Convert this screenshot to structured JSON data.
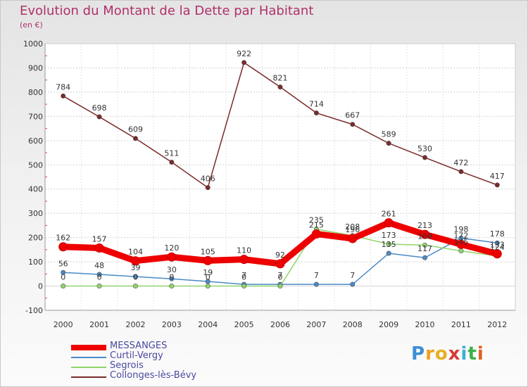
{
  "title": "Evolution du Montant de la Dette par Habitant",
  "subtitle": "(en €)",
  "logo": {
    "letters": [
      "P",
      "r",
      "o",
      "x",
      "i",
      "t",
      "i"
    ],
    "colors": [
      "#3b8fd6",
      "#f0a020",
      "#e8b020",
      "#d63b3b",
      "#3bb0d6",
      "#3bb04a",
      "#e06020"
    ]
  },
  "chart_data": {
    "type": "line",
    "categories": [
      "2000",
      "2001",
      "2002",
      "2003",
      "2004",
      "2005",
      "2006",
      "2007",
      "2008",
      "2009",
      "2010",
      "2011",
      "2012"
    ],
    "ylim": [
      -100,
      1000
    ],
    "yticks": [
      -100,
      0,
      100,
      200,
      300,
      400,
      500,
      600,
      700,
      800,
      900,
      1000
    ],
    "ytick_labels": [
      "-100",
      "0",
      "100",
      "200",
      "300",
      "400",
      "500",
      "600",
      "700",
      "800",
      "900",
      "1000"
    ],
    "xlabel": "",
    "ylabel": "",
    "grid": true,
    "legend_position": "bottom-left",
    "series": [
      {
        "name": "Collonges-lès-Bévy",
        "color": "#7a2a2a",
        "values": [
          784,
          698,
          609,
          511,
          406,
          922,
          821,
          714,
          667,
          589,
          530,
          472,
          417
        ],
        "labels": [
          "784",
          "698",
          "609",
          "511",
          "406",
          "922",
          "821",
          "714",
          "667",
          "589",
          "530",
          "472",
          "417"
        ]
      },
      {
        "name": "Curtil-Vergy",
        "color": "#4a8ac8",
        "values": [
          56,
          48,
          39,
          30,
          19,
          7,
          7,
          7,
          7,
          135,
          117,
          198,
          178
        ],
        "labels": [
          "56",
          "48",
          "39",
          "30",
          "19",
          "7",
          "7",
          "7",
          "7",
          "135",
          "117",
          "198",
          "178"
        ]
      },
      {
        "name": "Segrois",
        "color": "#8fd46a",
        "values": [
          0,
          0,
          0,
          0,
          0,
          0,
          0,
          235,
          208,
          173,
          169,
          145,
          124
        ],
        "labels": [
          "0",
          "0",
          "0",
          "0",
          "0",
          "0",
          "0",
          "235",
          "208",
          "173",
          "169",
          "145",
          "124"
        ]
      },
      {
        "name": "MESSANGES",
        "color": "#ee0000",
        "values": [
          162,
          157,
          104,
          120,
          105,
          110,
          92,
          215,
          196,
          261,
          213,
          172,
          133
        ],
        "labels": [
          "162",
          "157",
          "104",
          "120",
          "105",
          "110",
          "92",
          "215",
          "196",
          "261",
          "213",
          "172",
          "133"
        ]
      }
    ]
  },
  "legend": {
    "items": [
      {
        "label": "MESSANGES",
        "color": "#ee0000",
        "thickness": 8
      },
      {
        "label": "Curtil-Vergy",
        "color": "#4a8ac8",
        "thickness": 2
      },
      {
        "label": "Segrois",
        "color": "#8fd46a",
        "thickness": 2
      },
      {
        "label": "Collonges-lès-Bévy",
        "color": "#7a2a2a",
        "thickness": 2
      }
    ]
  }
}
